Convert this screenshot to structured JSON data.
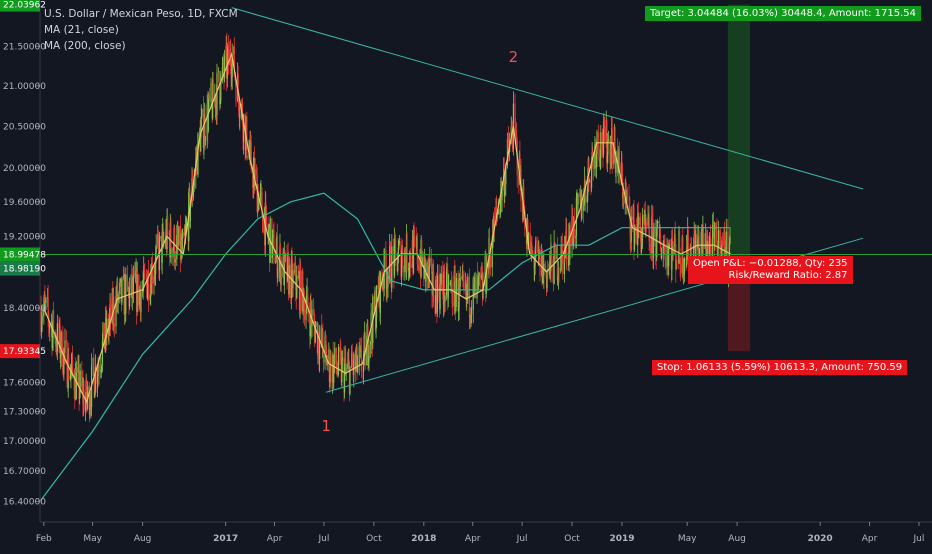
{
  "legend": {
    "title": "U.S. Dollar / Mexican Peso, 1D, FXCM",
    "ma21": "MA (21, close)",
    "ma200": "MA (200, close)"
  },
  "annotations": {
    "target": "Target: 3.04484 (16.03%) 30448.4, Amount: 1715.54",
    "stop": "Stop: 1.06133 (5.59%) 10613.3, Amount: 750.59",
    "open_pl": "Open P&L: −0.01288, Qty: 235",
    "risk_reward": "Risk/Reward Ratio: 2.87",
    "wave_1": "1",
    "wave_2": "2"
  },
  "price_tags": {
    "target": "22.03962",
    "current": "18.99478",
    "entry": "18.98190",
    "stop": "17.93345"
  },
  "colors": {
    "background": "#131722",
    "up": "#26a69a",
    "down": "#ef5350",
    "candle_up": "#8bc34a",
    "candle_down": "#e53935",
    "ma21": "#e6c96b",
    "ma200": "#35b8a8",
    "trendline": "#3db4a6",
    "target_zone": "#1b5e20",
    "stop_zone": "#7f1d1d",
    "entry_line": "#2e9e2e"
  },
  "chart_data": {
    "type": "line",
    "title": "U.S. Dollar / Mexican Peso, 1D, FXCM",
    "xlabel": "",
    "ylabel": "",
    "x_ticks": [
      "Feb",
      "May",
      "Aug",
      "2017",
      "Apr",
      "Jul",
      "Oct",
      "2018",
      "Apr",
      "Jul",
      "Oct",
      "2019",
      "May",
      "Aug",
      "2020",
      "Apr",
      "Jul"
    ],
    "y_ticks": [
      "21.50000",
      "21.00000",
      "20.50000",
      "20.00000",
      "19.60000",
      "19.20000",
      "18.40000",
      "17.60000",
      "17.30000",
      "17.00000",
      "16.70000",
      "16.40000"
    ],
    "ylim": [
      16.2,
      22.1
    ],
    "log_scale": true,
    "grid": false,
    "series": [
      {
        "name": "MA (21, close)",
        "x": [
          "2016-02-01",
          "2016-03-15",
          "2016-04-20",
          "2016-06-15",
          "2016-08-01",
          "2016-09-15",
          "2016-10-15",
          "2016-11-15",
          "2017-01-12",
          "2017-02-15",
          "2017-03-20",
          "2017-04-20",
          "2017-05-20",
          "2017-06-20",
          "2017-07-10",
          "2017-08-10",
          "2017-09-10",
          "2017-10-20",
          "2017-11-20",
          "2017-12-20",
          "2018-01-20",
          "2018-02-20",
          "2018-03-20",
          "2018-04-20",
          "2018-05-20",
          "2018-06-15",
          "2018-07-15",
          "2018-08-15",
          "2018-09-15",
          "2018-10-15",
          "2018-11-15",
          "2018-12-15",
          "2019-01-20",
          "2019-02-20",
          "2019-03-20",
          "2019-04-20",
          "2019-05-20",
          "2019-06-20",
          "2019-07-20"
        ],
        "values": [
          18.4,
          17.8,
          17.4,
          18.5,
          18.6,
          19.2,
          19.0,
          20.4,
          21.4,
          20.1,
          19.2,
          18.8,
          18.6,
          18.1,
          17.8,
          17.7,
          17.8,
          18.8,
          19.0,
          19.0,
          18.6,
          18.6,
          18.5,
          18.6,
          19.6,
          20.5,
          19.0,
          18.8,
          19.0,
          19.5,
          20.3,
          20.3,
          19.3,
          19.2,
          19.1,
          19.0,
          19.1,
          19.1,
          19.0
        ]
      },
      {
        "name": "MA (200, close)",
        "x": [
          "2016-01-25",
          "2016-05-01",
          "2016-08-01",
          "2016-11-01",
          "2017-01-01",
          "2017-03-01",
          "2017-05-01",
          "2017-07-01",
          "2017-09-01",
          "2017-11-01",
          "2018-01-01",
          "2018-03-01",
          "2018-05-01",
          "2018-07-01",
          "2018-09-01",
          "2018-11-01",
          "2019-01-01",
          "2019-03-01",
          "2019-05-01",
          "2019-07-20"
        ],
        "values": [
          16.4,
          17.1,
          17.9,
          18.5,
          19.0,
          19.4,
          19.6,
          19.7,
          19.4,
          18.7,
          18.6,
          18.6,
          18.6,
          18.9,
          19.1,
          19.1,
          19.3,
          19.3,
          19.3,
          19.3
        ]
      }
    ],
    "trendlines": [
      {
        "name": "upper",
        "from": {
          "x": "2017-01-12",
          "y": 22.0
        },
        "to": {
          "x": "2020-03-20",
          "y": 19.75
        }
      },
      {
        "name": "lower",
        "from": {
          "x": "2017-07-05",
          "y": 17.5
        },
        "to": {
          "x": "2020-03-20",
          "y": 19.18
        }
      }
    ],
    "position": {
      "entry": 18.9819,
      "current": 18.99478,
      "target": 22.03962,
      "stop": 17.93345,
      "from": "2019-07-15",
      "to": "2019-08-25"
    },
    "wave_points": [
      {
        "label": "1",
        "x": "2017-07-05",
        "y": 17.1
      },
      {
        "label": "2",
        "x": "2018-06-15",
        "y": 21.3
      }
    ]
  }
}
